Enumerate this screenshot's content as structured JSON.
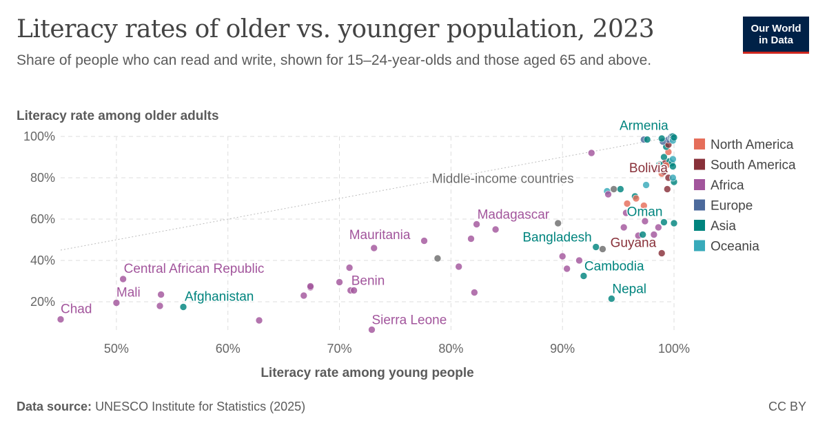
{
  "title": "Literacy rates of older vs. younger population, 2023",
  "subtitle": "Share of people who can read and write, shown for 15–24-year-olds and those aged 65 and above.",
  "logo": {
    "line1": "Our World",
    "line2": "in Data"
  },
  "footer": {
    "source_label": "Data source:",
    "source": "UNESCO Institute for Statistics (2025)",
    "license": "CC BY"
  },
  "colors": {
    "North America": "#e56e5a",
    "South America": "#883039",
    "Africa": "#a2559c",
    "Europe": "#4c6a9c",
    "Asia": "#00847e",
    "Oceania": "#38aaba",
    "Middle-income": "#6d6d6d"
  },
  "chart_data": {
    "type": "scatter",
    "xlabel": "Literacy rate among young people",
    "ylabel": "Literacy rate among older adults",
    "xlim": [
      45,
      100
    ],
    "ylim": [
      5,
      100
    ],
    "xticks": [
      "50%",
      "60%",
      "70%",
      "80%",
      "90%",
      "100%"
    ],
    "yticks": [
      "20%",
      "40%",
      "60%",
      "80%",
      "100%"
    ],
    "grid": true,
    "legend_position": "right",
    "legend": [
      "North America",
      "South America",
      "Africa",
      "Europe",
      "Asia",
      "Oceania"
    ],
    "reference_line": {
      "x": [
        45,
        100
      ],
      "y": [
        45,
        100
      ]
    },
    "points": [
      {
        "label": "Chad",
        "region": "Africa",
        "x": 45,
        "y": 11.5
      },
      {
        "label": "Mali",
        "region": "Africa",
        "x": 50,
        "y": 19.5
      },
      {
        "label": "Central African Republic",
        "region": "Africa",
        "x": 50.6,
        "y": 31
      },
      {
        "label": "",
        "region": "Africa",
        "x": 54,
        "y": 23.5
      },
      {
        "label": "",
        "region": "Africa",
        "x": 53.9,
        "y": 18
      },
      {
        "label": "Afghanistan",
        "region": "Asia",
        "x": 56,
        "y": 17.5
      },
      {
        "label": "",
        "region": "Africa",
        "x": 62.8,
        "y": 11
      },
      {
        "label": "",
        "region": "Africa",
        "x": 66.8,
        "y": 23
      },
      {
        "label": "",
        "region": "Africa",
        "x": 67.4,
        "y": 27
      },
      {
        "label": "",
        "region": "Africa",
        "x": 67.4,
        "y": 27.5
      },
      {
        "label": "",
        "region": "Africa",
        "x": 70,
        "y": 29.5
      },
      {
        "label": "",
        "region": "Africa",
        "x": 70.9,
        "y": 36.5
      },
      {
        "label": "Benin",
        "region": "Africa",
        "x": 71,
        "y": 25.5
      },
      {
        "label": "",
        "region": "Africa",
        "x": 71.3,
        "y": 25.5
      },
      {
        "label": "Mauritania",
        "region": "Africa",
        "x": 73.1,
        "y": 46
      },
      {
        "label": "Sierra Leone",
        "region": "Africa",
        "x": 72.9,
        "y": 6.5
      },
      {
        "label": "",
        "region": "Africa",
        "x": 77.6,
        "y": 49.5
      },
      {
        "label": "",
        "region": "Middle-income",
        "x": 78.8,
        "y": 41
      },
      {
        "label": "",
        "region": "Africa",
        "x": 80.7,
        "y": 37
      },
      {
        "label": "",
        "region": "Africa",
        "x": 81.8,
        "y": 50.5
      },
      {
        "label": "",
        "region": "Africa",
        "x": 82.1,
        "y": 24.5
      },
      {
        "label": "Madagascar",
        "region": "Africa",
        "x": 82.3,
        "y": 57.5
      },
      {
        "label": "",
        "region": "Africa",
        "x": 84,
        "y": 55
      },
      {
        "label": "",
        "region": "Middle-income",
        "x": 89.6,
        "y": 58
      },
      {
        "label": "",
        "region": "Africa",
        "x": 90,
        "y": 42
      },
      {
        "label": "",
        "region": "Africa",
        "x": 90.4,
        "y": 36
      },
      {
        "label": "",
        "region": "Africa",
        "x": 91.5,
        "y": 40
      },
      {
        "label": "Cambodia",
        "region": "Asia",
        "x": 91.9,
        "y": 32.5
      },
      {
        "label": "",
        "region": "Africa",
        "x": 92.6,
        "y": 92
      },
      {
        "label": "Bangladesh",
        "region": "Asia",
        "x": 93,
        "y": 46.5
      },
      {
        "label": "",
        "region": "Middle-income",
        "x": 93.6,
        "y": 45.5
      },
      {
        "label": "",
        "region": "Oceania",
        "x": 94,
        "y": 73.5
      },
      {
        "label": "",
        "region": "Africa",
        "x": 94.1,
        "y": 72
      },
      {
        "label": "Nepal",
        "region": "Asia",
        "x": 94.4,
        "y": 21.5
      },
      {
        "label": "Middle-income countries",
        "region": "Middle-income",
        "x": 94.6,
        "y": 74.5
      },
      {
        "label": "",
        "region": "Asia",
        "x": 95.2,
        "y": 74.5
      },
      {
        "label": "",
        "region": "Africa",
        "x": 95.5,
        "y": 56
      },
      {
        "label": "",
        "region": "North America",
        "x": 95.8,
        "y": 67.5
      },
      {
        "label": "",
        "region": "Africa",
        "x": 95.7,
        "y": 63
      },
      {
        "label": "",
        "region": "Asia",
        "x": 96.5,
        "y": 71
      },
      {
        "label": "",
        "region": "North America",
        "x": 96.6,
        "y": 70
      },
      {
        "label": "",
        "region": "Africa",
        "x": 96.8,
        "y": 52
      },
      {
        "label": "",
        "region": "Asia",
        "x": 97.2,
        "y": 52.5
      },
      {
        "label": "",
        "region": "North America",
        "x": 97.3,
        "y": 66.5
      },
      {
        "label": "",
        "region": "Africa",
        "x": 97.4,
        "y": 59
      },
      {
        "label": "",
        "region": "Oceania",
        "x": 97.5,
        "y": 76.5
      },
      {
        "label": "",
        "region": "Africa",
        "x": 98.2,
        "y": 52.5
      },
      {
        "label": "Guyana",
        "region": "South America",
        "x": 98.9,
        "y": 43.5
      },
      {
        "label": "Oman",
        "region": "Asia",
        "x": 99.1,
        "y": 58.5
      },
      {
        "label": "",
        "region": "Africa",
        "x": 98.6,
        "y": 56
      },
      {
        "label": "",
        "region": "Africa",
        "x": 98.5,
        "y": 84.5
      },
      {
        "label": "",
        "region": "South America",
        "x": 98.7,
        "y": 85
      },
      {
        "label": "",
        "region": "North America",
        "x": 98.9,
        "y": 82
      },
      {
        "label": "",
        "region": "Asia",
        "x": 99.1,
        "y": 90
      },
      {
        "label": "",
        "region": "South America",
        "x": 99.2,
        "y": 87
      },
      {
        "label": "",
        "region": "South America",
        "x": 99.4,
        "y": 74.5
      },
      {
        "label": "Bolivia",
        "region": "South America",
        "x": 99.5,
        "y": 80
      },
      {
        "label": "",
        "region": "North America",
        "x": 99.5,
        "y": 92.5
      },
      {
        "label": "",
        "region": "Asia",
        "x": 99.3,
        "y": 95
      },
      {
        "label": "",
        "region": "South America",
        "x": 99.5,
        "y": 96
      },
      {
        "label": "",
        "region": "Asia",
        "x": 99.6,
        "y": 88
      },
      {
        "label": "",
        "region": "Europe",
        "x": 99.5,
        "y": 98.5
      },
      {
        "label": "",
        "region": "Europe",
        "x": 99.7,
        "y": 99.5
      },
      {
        "label": "Armenia",
        "region": "Asia",
        "x": 99.8,
        "y": 99.5
      },
      {
        "label": "",
        "region": "Europe",
        "x": 99.8,
        "y": 100
      },
      {
        "label": "",
        "region": "Asia",
        "x": 99.9,
        "y": 100
      },
      {
        "label": "",
        "region": "Europe",
        "x": 99.9,
        "y": 99
      },
      {
        "label": "",
        "region": "Oceania",
        "x": 99.9,
        "y": 98
      },
      {
        "label": "",
        "region": "Asia",
        "x": 100,
        "y": 99.5
      },
      {
        "label": "",
        "region": "Asia",
        "x": 100,
        "y": 78
      },
      {
        "label": "",
        "region": "Oceania",
        "x": 99.9,
        "y": 80
      },
      {
        "label": "",
        "region": "Asia",
        "x": 99.8,
        "y": 87
      },
      {
        "label": "",
        "region": "Oceania",
        "x": 99.9,
        "y": 89
      },
      {
        "label": "",
        "region": "Asia",
        "x": 100,
        "y": 58
      },
      {
        "label": "",
        "region": "Europe",
        "x": 97.3,
        "y": 98.5
      },
      {
        "label": "",
        "region": "Asia",
        "x": 97.6,
        "y": 98.5
      },
      {
        "label": "",
        "region": "Europe",
        "x": 99.0,
        "y": 97.5
      },
      {
        "label": "",
        "region": "Asia",
        "x": 98.9,
        "y": 99
      },
      {
        "label": "",
        "region": "North America",
        "x": 99.3,
        "y": 86
      },
      {
        "label": "",
        "region": "Asia",
        "x": 98.7,
        "y": 86.5
      },
      {
        "label": "",
        "region": "South America",
        "x": 99.1,
        "y": 83
      },
      {
        "label": "",
        "region": "Asia",
        "x": 99.9,
        "y": 85.5
      }
    ]
  }
}
